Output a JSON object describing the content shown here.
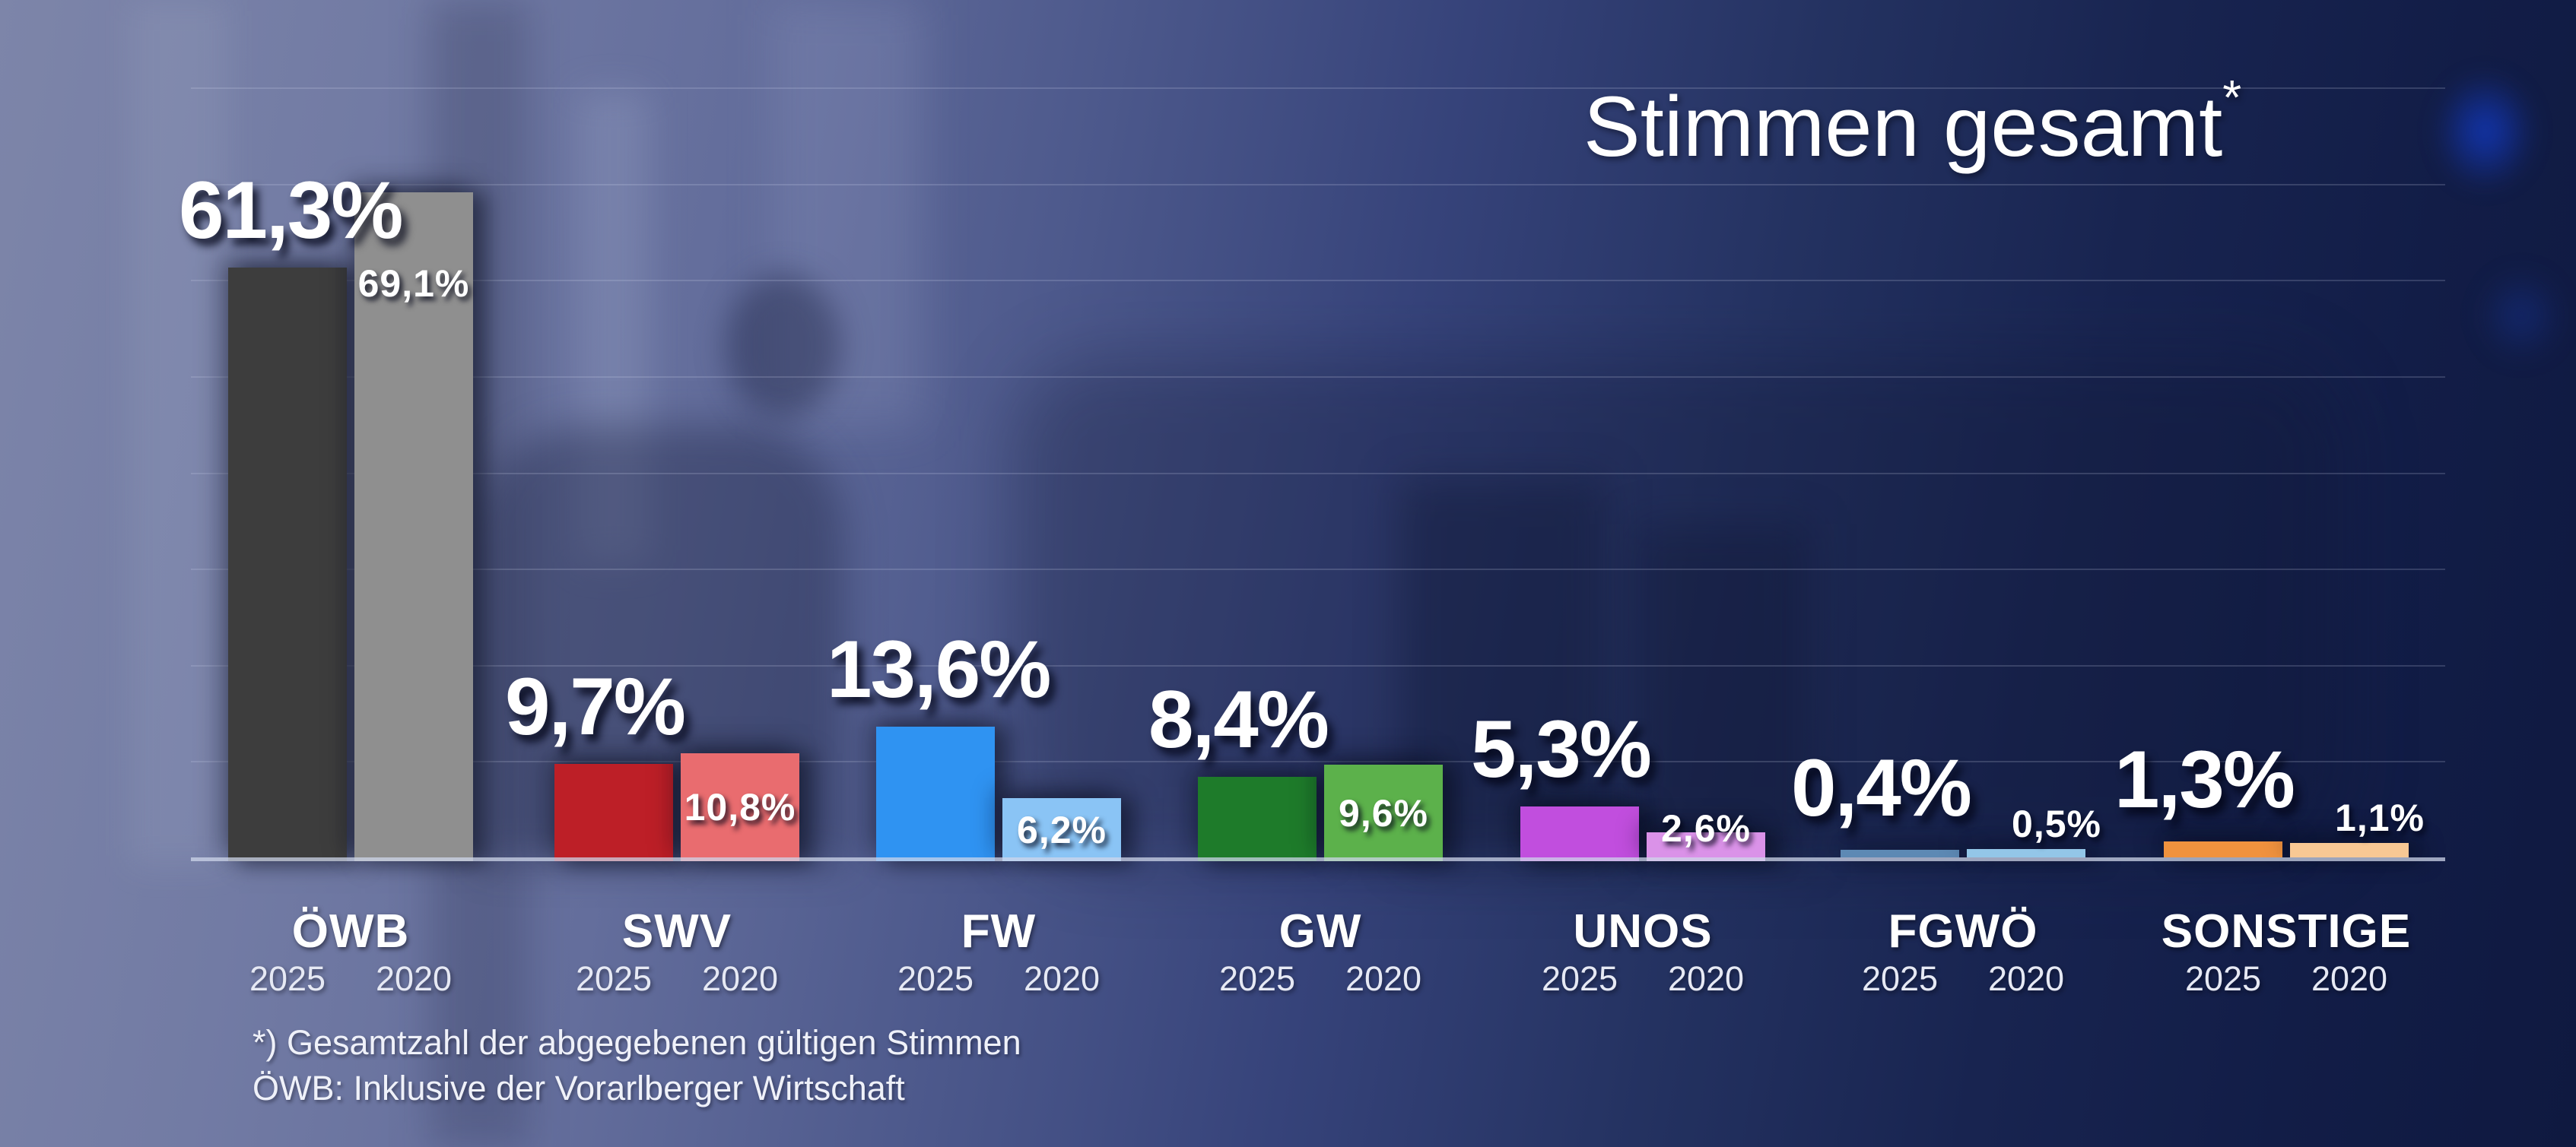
{
  "title": {
    "text": "Stimmen gesamt",
    "asterisk": "*"
  },
  "footnote": {
    "line1": "*) Gesamtzahl der abgegebenen gültigen Stimmen",
    "line2": "ÖWB: Inklusive der Vorarlberger Wirtschaft"
  },
  "years": [
    "2025",
    "2020"
  ],
  "parties": [
    {
      "name": "ÖWB",
      "v2025": 61.3,
      "v2020": 69.1,
      "label2025": "61,3%",
      "label2020": "69,1%",
      "color2025": "#3d3d3d",
      "color2020": "#8f8f8f"
    },
    {
      "name": "SWV",
      "v2025": 9.7,
      "v2020": 10.8,
      "label2025": "9,7%",
      "label2020": "10,8%",
      "color2025": "#bd1f27",
      "color2020": "#e96c6f"
    },
    {
      "name": "FW",
      "v2025": 13.6,
      "v2020": 6.2,
      "label2025": "13,6%",
      "label2020": "6,2%",
      "color2025": "#2f93f2",
      "color2020": "#8ac4f5"
    },
    {
      "name": "GW",
      "v2025": 8.4,
      "v2020": 9.6,
      "label2025": "8,4%",
      "label2020": "9,6%",
      "color2025": "#1e7b2a",
      "color2020": "#5cb14b"
    },
    {
      "name": "UNOS",
      "v2025": 5.3,
      "v2020": 2.6,
      "label2025": "5,3%",
      "label2020": "2,6%",
      "color2025": "#c14ede",
      "color2020": "#da92e8"
    },
    {
      "name": "FGWÖ",
      "v2025": 0.4,
      "v2020": 0.5,
      "label2025": "0,4%",
      "label2020": "0,5%",
      "color2025": "#5d89b4",
      "color2020": "#93c6e8"
    },
    {
      "name": "SONSTIGE",
      "v2025": 1.3,
      "v2020": 1.1,
      "label2025": "1,3%",
      "label2020": "1,1%",
      "color2025": "#f0923e",
      "color2020": "#f8c894"
    }
  ],
  "chart_data": {
    "type": "bar",
    "title": "Stimmen gesamt*",
    "categories": [
      "ÖWB",
      "SWV",
      "FW",
      "GW",
      "UNOS",
      "FGWÖ",
      "SONSTIGE"
    ],
    "series": [
      {
        "name": "2025",
        "values": [
          61.3,
          9.7,
          13.6,
          8.4,
          5.3,
          0.4,
          1.3
        ],
        "labels": [
          "61,3%",
          "9,7%",
          "13,6%",
          "8,4%",
          "5,3%",
          "0,4%",
          "1,3%"
        ],
        "colors": [
          "#3d3d3d",
          "#bd1f27",
          "#2f93f2",
          "#1e7b2a",
          "#c14ede",
          "#5d89b4",
          "#f0923e"
        ]
      },
      {
        "name": "2020",
        "values": [
          69.1,
          10.8,
          6.2,
          9.6,
          2.6,
          0.5,
          1.1
        ],
        "labels": [
          "69,1%",
          "10,8%",
          "6,2%",
          "9,6%",
          "2,6%",
          "0,5%",
          "1,1%"
        ],
        "colors": [
          "#8f8f8f",
          "#e96c6f",
          "#8ac4f5",
          "#5cb14b",
          "#da92e8",
          "#93c6e8",
          "#f8c894"
        ]
      }
    ],
    "xlabel": "",
    "ylabel": "",
    "ylim": [
      0,
      89
    ],
    "gridlines_percent": [
      10,
      20,
      30,
      40,
      50,
      60,
      70,
      80
    ],
    "grid": true,
    "legend_position": "year labels under each bar",
    "footnotes": [
      "*) Gesamtzahl der abgegebenen gültigen Stimmen",
      "ÖWB: Inklusive der Vorarlberger Wirtschaft"
    ]
  }
}
